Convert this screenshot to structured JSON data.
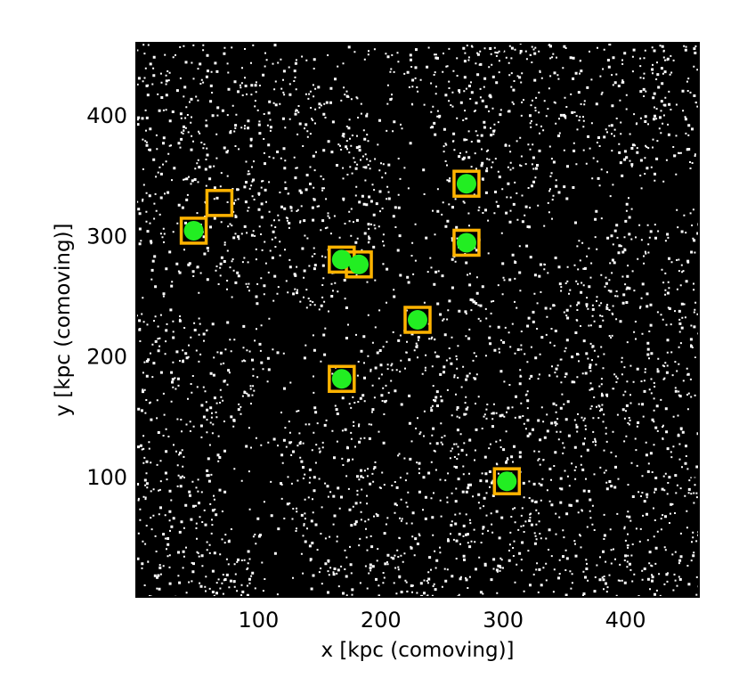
{
  "chart_data": {
    "type": "scatter",
    "title": "",
    "xlabel": "x [kpc (comoving)]",
    "ylabel": "y [kpc (comoving)]",
    "xlim": [
      0,
      460
    ],
    "ylim": [
      0,
      460
    ],
    "xticks": [
      "100",
      "200",
      "300",
      "400"
    ],
    "yticks": [
      "100",
      "200",
      "300",
      "400"
    ],
    "xtick_values": [
      100,
      200,
      300,
      400
    ],
    "ytick_values": [
      100,
      200,
      300,
      400
    ],
    "grid": false,
    "background": "#000000",
    "colors": {
      "halo": "#22ee22",
      "square": "#ffb300",
      "particles": "#ffffff",
      "plot_bg": "#000000"
    },
    "series": [
      {
        "marker": "open-square",
        "points": [
          {
            "x": 47,
            "y": 304
          },
          {
            "x": 68,
            "y": 327
          },
          {
            "x": 168,
            "y": 280
          },
          {
            "x": 182,
            "y": 276
          },
          {
            "x": 230,
            "y": 230
          },
          {
            "x": 270,
            "y": 343
          },
          {
            "x": 270,
            "y": 294
          },
          {
            "x": 168,
            "y": 181
          },
          {
            "x": 303,
            "y": 96
          }
        ]
      },
      {
        "marker": "filled-circle",
        "points": [
          {
            "x": 47,
            "y": 304
          },
          {
            "x": 168,
            "y": 280
          },
          {
            "x": 182,
            "y": 276
          },
          {
            "x": 230,
            "y": 230
          },
          {
            "x": 270,
            "y": 343
          },
          {
            "x": 270,
            "y": 294
          },
          {
            "x": 168,
            "y": 181
          },
          {
            "x": 303,
            "y": 96
          }
        ]
      }
    ]
  }
}
